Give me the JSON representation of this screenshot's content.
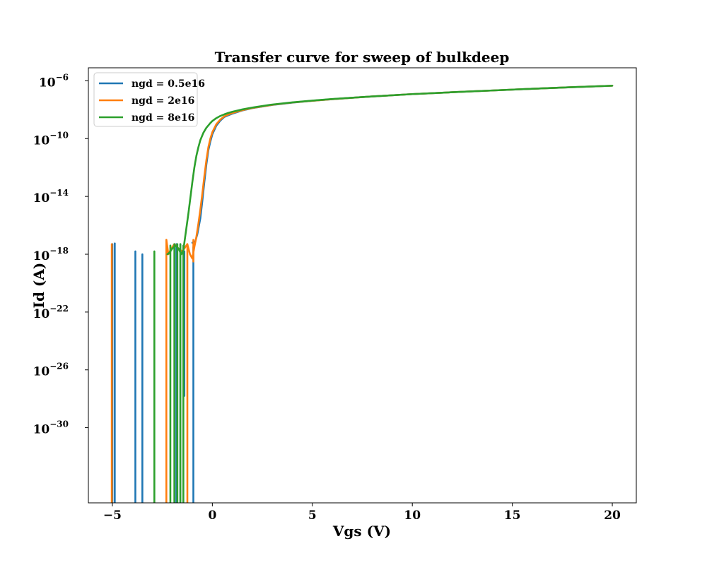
{
  "chart_data": {
    "type": "line",
    "title": "Transfer curve for sweep of bulkdeep",
    "xlabel": "Vgs (V)",
    "ylabel": "Id (A)",
    "xscale": "linear",
    "yscale": "log",
    "xlim": [
      -6.2,
      21.2
    ],
    "ylim_log10": [
      -35.2,
      -5.1
    ],
    "xticks": [
      -5,
      0,
      5,
      10,
      15,
      20
    ],
    "xtick_labels": [
      "−5",
      "0",
      "5",
      "10",
      "15",
      "20"
    ],
    "yticks_log10": [
      -6,
      -10,
      -14,
      -18,
      -22,
      -26,
      -30
    ],
    "ytick_base": "10",
    "ytick_exponents": [
      "−6",
      "−10",
      "−14",
      "−18",
      "−22",
      "−26",
      "−30"
    ],
    "legend_position": "upper-left",
    "grid": false,
    "series": [
      {
        "name": "ngd = 0.5e16",
        "color": "#1f77b4",
        "main_curve_log10": [
          [
            -1.0,
            -17.2
          ],
          [
            -0.85,
            -17.1
          ],
          [
            -0.75,
            -16.6
          ],
          [
            -0.6,
            -15.5
          ],
          [
            -0.5,
            -14.3
          ],
          [
            -0.4,
            -13.0
          ],
          [
            -0.3,
            -11.8
          ],
          [
            -0.2,
            -10.8
          ],
          [
            -0.1,
            -10.2
          ],
          [
            0.0,
            -9.7
          ],
          [
            0.2,
            -9.1
          ],
          [
            0.4,
            -8.75
          ],
          [
            0.6,
            -8.5
          ],
          [
            0.8,
            -8.38
          ],
          [
            1.0,
            -8.27
          ],
          [
            1.5,
            -8.05
          ],
          [
            2.0,
            -7.89
          ],
          [
            3.0,
            -7.67
          ],
          [
            4.0,
            -7.51
          ],
          [
            5.0,
            -7.38
          ],
          [
            6.0,
            -7.27
          ],
          [
            8.0,
            -7.08
          ],
          [
            10.0,
            -6.92
          ],
          [
            12.0,
            -6.79
          ],
          [
            14.0,
            -6.67
          ],
          [
            16.0,
            -6.55
          ],
          [
            18.0,
            -6.44
          ],
          [
            20.0,
            -6.34
          ]
        ],
        "noise_spikes": [
          {
            "x": -5.0,
            "top": -17.3,
            "bottom": -35.2
          },
          {
            "x": -4.88,
            "top": -17.25,
            "bottom": -35.2
          },
          {
            "x": -3.85,
            "top": -17.8,
            "bottom": -35.2
          },
          {
            "x": -3.5,
            "top": -18.0,
            "bottom": -35.2
          },
          {
            "x": -1.8,
            "top": -17.3,
            "bottom": -35.2
          },
          {
            "x": -1.6,
            "top": -17.3,
            "bottom": -35.2
          },
          {
            "x": -1.4,
            "top": -17.8,
            "bottom": -27.8
          },
          {
            "x": -0.95,
            "top": -17.5,
            "bottom": -35.2
          }
        ]
      },
      {
        "name": "ngd = 2e16",
        "color": "#ff7f0e",
        "main_curve_log10": [
          [
            -2.3,
            -17.0
          ],
          [
            -2.2,
            -18.0
          ],
          [
            -2.05,
            -17.6
          ],
          [
            -1.9,
            -17.3
          ],
          [
            -1.7,
            -17.6
          ],
          [
            -1.5,
            -17.8
          ],
          [
            -1.35,
            -17.5
          ],
          [
            -1.25,
            -17.3
          ],
          [
            -1.12,
            -18.0
          ],
          [
            -1.0,
            -18.3
          ],
          [
            -0.9,
            -17.5
          ],
          [
            -0.8,
            -16.8
          ],
          [
            -0.7,
            -15.9
          ],
          [
            -0.6,
            -14.9
          ],
          [
            -0.5,
            -13.8
          ],
          [
            -0.4,
            -12.6
          ],
          [
            -0.3,
            -11.5
          ],
          [
            -0.2,
            -10.6
          ],
          [
            -0.1,
            -10.0
          ],
          [
            0.0,
            -9.55
          ],
          [
            0.2,
            -9.0
          ],
          [
            0.4,
            -8.68
          ],
          [
            0.6,
            -8.46
          ],
          [
            0.8,
            -8.33
          ],
          [
            1.0,
            -8.23
          ],
          [
            1.5,
            -8.03
          ],
          [
            2.0,
            -7.88
          ],
          [
            3.0,
            -7.66
          ],
          [
            4.0,
            -7.5
          ],
          [
            5.0,
            -7.38
          ],
          [
            6.0,
            -7.27
          ],
          [
            8.0,
            -7.08
          ],
          [
            10.0,
            -6.92
          ],
          [
            12.0,
            -6.79
          ],
          [
            14.0,
            -6.67
          ],
          [
            16.0,
            -6.55
          ],
          [
            18.0,
            -6.44
          ],
          [
            20.0,
            -6.34
          ]
        ],
        "noise_spikes": [
          {
            "x": -5.03,
            "top": -17.3,
            "bottom": -35.2
          },
          {
            "x": -2.3,
            "top": -17.0,
            "bottom": -35.2
          },
          {
            "x": -1.25,
            "top": -17.3,
            "bottom": -35.2
          },
          {
            "x": -0.95,
            "top": -17.0,
            "bottom": -18.5
          }
        ]
      },
      {
        "name": "ngd = 8e16",
        "color": "#2ca02c",
        "main_curve_log10": [
          [
            -2.25,
            -18.0
          ],
          [
            -2.15,
            -17.9
          ],
          [
            -2.0,
            -17.6
          ],
          [
            -1.85,
            -17.4
          ],
          [
            -1.7,
            -17.6
          ],
          [
            -1.55,
            -18.0
          ],
          [
            -1.45,
            -17.7
          ],
          [
            -1.38,
            -17.0
          ],
          [
            -1.3,
            -16.2
          ],
          [
            -1.2,
            -15.2
          ],
          [
            -1.1,
            -14.1
          ],
          [
            -1.0,
            -13.0
          ],
          [
            -0.9,
            -12.0
          ],
          [
            -0.8,
            -11.2
          ],
          [
            -0.7,
            -10.6
          ],
          [
            -0.6,
            -10.1
          ],
          [
            -0.45,
            -9.6
          ],
          [
            -0.3,
            -9.25
          ],
          [
            -0.1,
            -8.92
          ],
          [
            0.0,
            -8.78
          ],
          [
            0.2,
            -8.58
          ],
          [
            0.4,
            -8.43
          ],
          [
            0.6,
            -8.32
          ],
          [
            0.8,
            -8.22
          ],
          [
            1.0,
            -8.14
          ],
          [
            1.5,
            -7.98
          ],
          [
            2.0,
            -7.85
          ],
          [
            3.0,
            -7.64
          ],
          [
            4.0,
            -7.49
          ],
          [
            5.0,
            -7.37
          ],
          [
            6.0,
            -7.26
          ],
          [
            8.0,
            -7.08
          ],
          [
            10.0,
            -6.92
          ],
          [
            12.0,
            -6.79
          ],
          [
            14.0,
            -6.67
          ],
          [
            16.0,
            -6.55
          ],
          [
            18.0,
            -6.44
          ],
          [
            20.0,
            -6.34
          ]
        ],
        "noise_spikes": [
          {
            "x": -2.9,
            "top": -17.8,
            "bottom": -35.2
          },
          {
            "x": -2.1,
            "top": -17.4,
            "bottom": -35.2
          },
          {
            "x": -1.9,
            "top": -17.3,
            "bottom": -35.2
          },
          {
            "x": -1.75,
            "top": -17.3,
            "bottom": -35.2
          },
          {
            "x": -1.6,
            "top": -17.3,
            "bottom": -35.2
          },
          {
            "x": -1.45,
            "top": -17.4,
            "bottom": -35.2
          }
        ]
      }
    ]
  }
}
